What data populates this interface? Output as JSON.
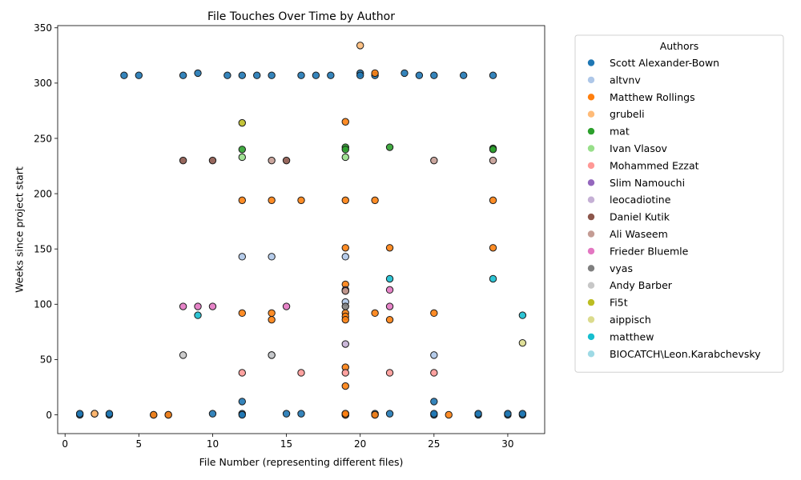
{
  "chart_data": {
    "type": "scatter",
    "title": "File Touches Over Time by Author",
    "xlabel": "File Number (representing different files)",
    "ylabel": "Weeks since project start",
    "xlim": [
      -0.5,
      32.5
    ],
    "ylim": [
      -17,
      352
    ],
    "xticks": [
      0,
      5,
      10,
      15,
      20,
      25,
      30
    ],
    "yticks": [
      0,
      50,
      100,
      150,
      200,
      250,
      300,
      350
    ],
    "grid": false,
    "legend": {
      "title": "Authors",
      "placement": "outside-right",
      "entries": [
        {
          "name": "Scott Alexander-Bown",
          "color": "#1f77b4"
        },
        {
          "name": "altvnv",
          "color": "#aec7e8"
        },
        {
          "name": "Matthew Rollings",
          "color": "#ff7f0e"
        },
        {
          "name": "grubeli",
          "color": "#ffbb78"
        },
        {
          "name": "mat",
          "color": "#2ca02c"
        },
        {
          "name": "Ivan Vlasov",
          "color": "#98df8a"
        },
        {
          "name": "Mohammed Ezzat",
          "color": "#ff9896"
        },
        {
          "name": "Slim Namouchi",
          "color": "#9467bd"
        },
        {
          "name": "leocadiotine",
          "color": "#c5b0d5"
        },
        {
          "name": "Daniel Kutik",
          "color": "#8c564b"
        },
        {
          "name": "Ali Waseem",
          "color": "#c49c94"
        },
        {
          "name": "Frieder Bluemle",
          "color": "#e377c2"
        },
        {
          "name": "vyas",
          "color": "#7f7f7f"
        },
        {
          "name": "Andy Barber",
          "color": "#c7c7c7"
        },
        {
          "name": "Fi5t",
          "color": "#bcbd22"
        },
        {
          "name": "aippisch",
          "color": "#dbdb8d"
        },
        {
          "name": "matthew",
          "color": "#17becf"
        },
        {
          "name": "BIOCATCH\\Leon.Karabchevsky",
          "color": "#9edae5"
        }
      ]
    },
    "series": [
      {
        "name": "Scott Alexander-Bown",
        "color": "#1f77b4",
        "points": [
          [
            4,
            307
          ],
          [
            5,
            307
          ],
          [
            8,
            307
          ],
          [
            9,
            309
          ],
          [
            11,
            307
          ],
          [
            12,
            307
          ],
          [
            13,
            307
          ],
          [
            14,
            307
          ],
          [
            16,
            307
          ],
          [
            17,
            307
          ],
          [
            18,
            307
          ],
          [
            20,
            309
          ],
          [
            20,
            307
          ],
          [
            21,
            307
          ],
          [
            23,
            309
          ],
          [
            24,
            307
          ],
          [
            25,
            307
          ],
          [
            27,
            307
          ],
          [
            29,
            307
          ],
          [
            1,
            0
          ],
          [
            1,
            1
          ],
          [
            3,
            0
          ],
          [
            3,
            1
          ],
          [
            6,
            0
          ],
          [
            7,
            0
          ],
          [
            10,
            1
          ],
          [
            12,
            1
          ],
          [
            12,
            0
          ],
          [
            12,
            12
          ],
          [
            15,
            1
          ],
          [
            16,
            1
          ],
          [
            19,
            0
          ],
          [
            19,
            1
          ],
          [
            21,
            0
          ],
          [
            21,
            1
          ],
          [
            22,
            1
          ],
          [
            25,
            0
          ],
          [
            25,
            1
          ],
          [
            25,
            12
          ],
          [
            28,
            0
          ],
          [
            28,
            1
          ],
          [
            30,
            0
          ],
          [
            30,
            1
          ],
          [
            31,
            0
          ],
          [
            31,
            1
          ],
          [
            19,
            0
          ],
          [
            2,
            1
          ]
        ]
      },
      {
        "name": "altvnv",
        "color": "#aec7e8",
        "points": [
          [
            12,
            143
          ],
          [
            14,
            143
          ],
          [
            19,
            143
          ],
          [
            19,
            102
          ],
          [
            14,
            54
          ],
          [
            25,
            54
          ]
        ]
      },
      {
        "name": "Matthew Rollings",
        "color": "#ff7f0e",
        "points": [
          [
            21,
            309
          ],
          [
            19,
            265
          ],
          [
            12,
            194
          ],
          [
            14,
            194
          ],
          [
            16,
            194
          ],
          [
            19,
            194
          ],
          [
            21,
            194
          ],
          [
            29,
            194
          ],
          [
            19,
            151
          ],
          [
            22,
            151
          ],
          [
            29,
            151
          ],
          [
            19,
            118
          ],
          [
            19,
            92
          ],
          [
            19,
            89
          ],
          [
            19,
            86
          ],
          [
            12,
            92
          ],
          [
            14,
            92
          ],
          [
            14,
            86
          ],
          [
            21,
            92
          ],
          [
            22,
            86
          ],
          [
            25,
            92
          ],
          [
            19,
            43
          ],
          [
            19,
            26
          ],
          [
            2,
            1
          ],
          [
            6,
            0
          ],
          [
            7,
            0
          ],
          [
            26,
            0
          ],
          [
            19,
            0
          ],
          [
            19,
            1
          ],
          [
            21,
            0
          ]
        ]
      },
      {
        "name": "grubeli",
        "color": "#ffbb78",
        "points": [
          [
            20,
            334
          ],
          [
            2,
            1
          ]
        ]
      },
      {
        "name": "mat",
        "color": "#2ca02c",
        "points": [
          [
            12,
            240
          ],
          [
            19,
            242
          ],
          [
            19,
            240
          ],
          [
            22,
            242
          ],
          [
            29,
            241
          ],
          [
            29,
            240
          ]
        ]
      },
      {
        "name": "Ivan Vlasov",
        "color": "#98df8a",
        "points": [
          [
            12,
            233
          ],
          [
            19,
            233
          ]
        ]
      },
      {
        "name": "Mohammed Ezzat",
        "color": "#ff9896",
        "points": [
          [
            12,
            38
          ],
          [
            16,
            38
          ],
          [
            19,
            38
          ],
          [
            22,
            38
          ],
          [
            25,
            38
          ]
        ]
      },
      {
        "name": "Slim Namouchi",
        "color": "#9467bd",
        "points": [
          [
            19,
            113
          ]
        ]
      },
      {
        "name": "leocadiotine",
        "color": "#c5b0d5",
        "points": [
          [
            19,
            64
          ]
        ]
      },
      {
        "name": "Daniel Kutik",
        "color": "#8c564b",
        "points": [
          [
            8,
            230
          ],
          [
            10,
            230
          ],
          [
            15,
            230
          ],
          [
            19,
            112
          ]
        ]
      },
      {
        "name": "Ali Waseem",
        "color": "#c49c94",
        "points": [
          [
            14,
            230
          ],
          [
            19,
            112
          ],
          [
            25,
            230
          ],
          [
            29,
            230
          ]
        ]
      },
      {
        "name": "Frieder Bluemle",
        "color": "#e377c2",
        "points": [
          [
            8,
            98
          ],
          [
            9,
            98
          ],
          [
            10,
            98
          ],
          [
            15,
            98
          ],
          [
            22,
            98
          ],
          [
            22,
            113
          ]
        ]
      },
      {
        "name": "vyas",
        "color": "#7f7f7f",
        "points": [
          [
            19,
            98
          ]
        ]
      },
      {
        "name": "Andy Barber",
        "color": "#c7c7c7",
        "points": [
          [
            8,
            54
          ],
          [
            14,
            54
          ]
        ]
      },
      {
        "name": "Fi5t",
        "color": "#bcbd22",
        "points": [
          [
            12,
            264
          ]
        ]
      },
      {
        "name": "aippisch",
        "color": "#dbdb8d",
        "points": [
          [
            31,
            65
          ]
        ]
      },
      {
        "name": "matthew",
        "color": "#17becf",
        "points": [
          [
            9,
            90
          ],
          [
            22,
            123
          ],
          [
            29,
            123
          ],
          [
            31,
            90
          ]
        ]
      },
      {
        "name": "BIOCATCH\\Leon.Karabchevsky",
        "color": "#9edae5",
        "points": []
      }
    ]
  }
}
